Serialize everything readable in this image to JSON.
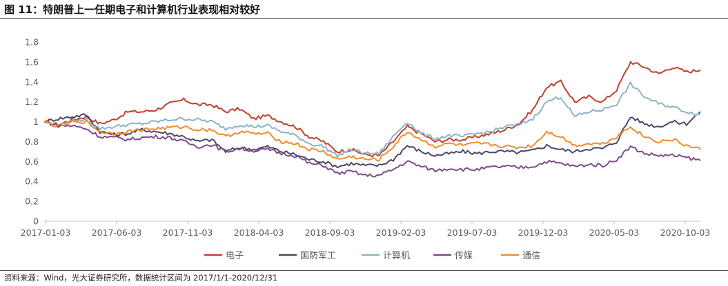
{
  "title": "图 11：特朗普上一任期电子和计算机行业表现相对较好",
  "source": "资料来源：Wind，光大证券研究所，数据统计区间为 2017/1/1-2020/12/31",
  "chart_data": {
    "type": "line",
    "title": "",
    "xlabel": "",
    "ylabel": "",
    "ylim": [
      0,
      1.8
    ],
    "yticks": [
      "0",
      "0.2",
      "0.4",
      "0.6",
      "0.8",
      "1",
      "1.2",
      "1.4",
      "1.6",
      "1.8"
    ],
    "xticks": [
      "2017-01-03",
      "2017-06-03",
      "2017-11-03",
      "2018-04-03",
      "2018-09-03",
      "2019-02-03",
      "2019-07-03",
      "2019-12-03",
      "2020-05-03",
      "2020-10-03"
    ],
    "x": [
      "2017-01",
      "2017-02",
      "2017-03",
      "2017-04",
      "2017-05",
      "2017-06",
      "2017-07",
      "2017-08",
      "2017-09",
      "2017-10",
      "2017-11",
      "2017-12",
      "2018-01",
      "2018-02",
      "2018-03",
      "2018-04",
      "2018-05",
      "2018-06",
      "2018-07",
      "2018-08",
      "2018-09",
      "2018-10",
      "2018-11",
      "2018-12",
      "2019-01",
      "2019-02",
      "2019-03",
      "2019-04",
      "2019-05",
      "2019-06",
      "2019-07",
      "2019-08",
      "2019-09",
      "2019-10",
      "2019-11",
      "2019-12",
      "2020-01",
      "2020-02",
      "2020-03",
      "2020-04",
      "2020-05",
      "2020-06",
      "2020-07",
      "2020-08",
      "2020-09",
      "2020-10",
      "2020-11",
      "2020-12"
    ],
    "series": [
      {
        "name": "电子",
        "color": "#C0402A",
        "values": [
          1.0,
          0.97,
          1.02,
          1.05,
          0.98,
          1.02,
          1.1,
          1.1,
          1.12,
          1.18,
          1.22,
          1.17,
          1.17,
          1.1,
          1.13,
          1.03,
          1.06,
          1.0,
          0.95,
          0.85,
          0.8,
          0.7,
          0.72,
          0.67,
          0.66,
          0.8,
          0.95,
          0.88,
          0.8,
          0.82,
          0.82,
          0.85,
          0.88,
          0.92,
          0.98,
          1.12,
          1.35,
          1.4,
          1.2,
          1.25,
          1.2,
          1.32,
          1.6,
          1.55,
          1.48,
          1.55,
          1.5,
          1.52
        ]
      },
      {
        "name": "国防军工",
        "color": "#4A4769",
        "values": [
          1.0,
          1.03,
          1.05,
          1.07,
          0.9,
          0.87,
          0.88,
          0.92,
          0.9,
          0.88,
          0.85,
          0.8,
          0.82,
          0.7,
          0.74,
          0.72,
          0.75,
          0.7,
          0.67,
          0.62,
          0.6,
          0.55,
          0.58,
          0.56,
          0.56,
          0.62,
          0.76,
          0.7,
          0.66,
          0.68,
          0.7,
          0.68,
          0.7,
          0.7,
          0.69,
          0.71,
          0.76,
          0.72,
          0.7,
          0.73,
          0.73,
          0.8,
          1.05,
          0.98,
          0.95,
          1.0,
          0.98,
          1.1
        ]
      },
      {
        "name": "计算机",
        "color": "#8EB2C5",
        "values": [
          1.0,
          0.96,
          1.0,
          1.02,
          0.93,
          0.95,
          0.97,
          0.98,
          1.0,
          1.02,
          1.03,
          1.02,
          1.0,
          0.93,
          0.97,
          0.95,
          0.96,
          0.9,
          0.86,
          0.78,
          0.75,
          0.66,
          0.72,
          0.68,
          0.68,
          0.85,
          1.0,
          0.88,
          0.83,
          0.86,
          0.85,
          0.88,
          0.9,
          0.95,
          0.97,
          1.03,
          1.2,
          1.25,
          1.05,
          1.1,
          1.12,
          1.18,
          1.38,
          1.25,
          1.18,
          1.15,
          1.1,
          1.07
        ]
      },
      {
        "name": "传媒",
        "color": "#7D4A8A",
        "values": [
          1.0,
          0.96,
          0.96,
          0.93,
          0.85,
          0.84,
          0.82,
          0.84,
          0.85,
          0.84,
          0.8,
          0.75,
          0.77,
          0.7,
          0.73,
          0.71,
          0.72,
          0.68,
          0.66,
          0.58,
          0.56,
          0.48,
          0.5,
          0.46,
          0.46,
          0.52,
          0.6,
          0.55,
          0.51,
          0.53,
          0.52,
          0.52,
          0.54,
          0.55,
          0.54,
          0.55,
          0.6,
          0.58,
          0.55,
          0.57,
          0.56,
          0.62,
          0.75,
          0.68,
          0.66,
          0.66,
          0.64,
          0.61
        ]
      },
      {
        "name": "通信",
        "color": "#F28C28",
        "values": [
          1.0,
          0.95,
          1.0,
          1.0,
          0.9,
          0.88,
          0.9,
          0.92,
          0.93,
          0.94,
          0.95,
          0.92,
          0.92,
          0.85,
          0.9,
          0.88,
          0.88,
          0.8,
          0.78,
          0.72,
          0.7,
          0.62,
          0.65,
          0.62,
          0.62,
          0.75,
          0.9,
          0.82,
          0.75,
          0.78,
          0.76,
          0.78,
          0.77,
          0.75,
          0.74,
          0.76,
          0.9,
          0.85,
          0.76,
          0.78,
          0.78,
          0.85,
          0.95,
          0.85,
          0.8,
          0.82,
          0.76,
          0.72
        ]
      }
    ]
  }
}
